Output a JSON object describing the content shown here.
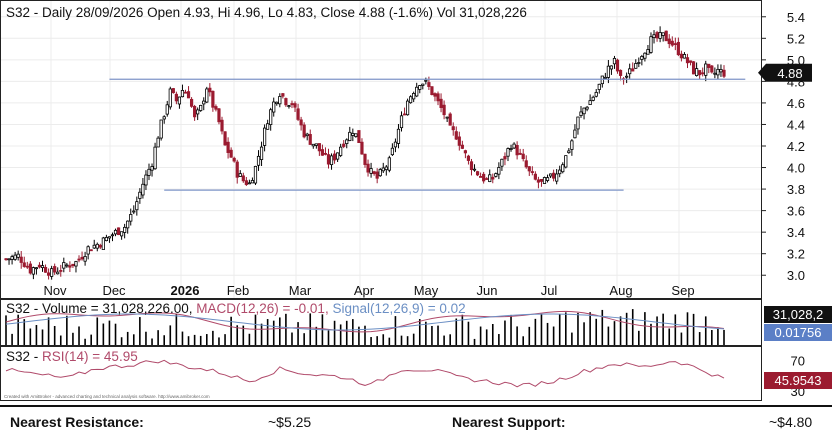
{
  "header": {
    "main_title": "S32 - Daily 28/09/2026 Open 4.93, Hi 4.96, Lo 4.83, Close 4.88 (-1.6%) Vol 31,028,226",
    "volume_title_prefix": "S32 - Volume = 31,028,226.00,",
    "macd_label": "MACD(12,26) = -0.01,",
    "signal_label": "Signal(12,26,9) = 0.02",
    "rsi_title_prefix": "S32 - ",
    "rsi_label": "RSI(14) = 45.95",
    "watermark": "Created with AmiBroker - advanced charting and technical analysis software. http://www.amibroker.com"
  },
  "badges": {
    "price": "4.88",
    "volume": "31,028,2",
    "macd": "0.01756",
    "rsi": "45.9543"
  },
  "footer": {
    "resistance_label": "Nearest Resistance:",
    "resistance_value": "~$5.25",
    "support_label": "Nearest Support:",
    "support_value": "~$4.80"
  },
  "colors": {
    "up": "#000000",
    "down": "#9b1b30",
    "level_line": "#7f95c8",
    "macd_line": "#b04a6a",
    "signal_line": "#6b8fc4",
    "rsi_line": "#b04a6a",
    "volume_bar": "#000000",
    "macd_badge_bg": "#5b7fc6",
    "rsi_badge_bg": "#9b1b30",
    "badge_dark": "#111111"
  },
  "chart_data": {
    "type": "candlestick",
    "price_axis": {
      "min": 2.9,
      "max": 5.5,
      "ticks": [
        "5.4",
        "5.2",
        "5.0",
        "4.8",
        "4.6",
        "4.4",
        "4.2",
        "4.0",
        "3.8",
        "3.6",
        "3.4",
        "3.2",
        "3.0"
      ]
    },
    "rsi_axis": {
      "ticks": [
        "70",
        "50",
        "30"
      ]
    },
    "month_labels": [
      {
        "label": "Nov",
        "bold": false
      },
      {
        "label": "Dec",
        "bold": false
      },
      {
        "label": "2026",
        "bold": true
      },
      {
        "label": "Feb",
        "bold": false
      },
      {
        "label": "Mar",
        "bold": false
      },
      {
        "label": "Apr",
        "bold": false
      },
      {
        "label": "May",
        "bold": false
      },
      {
        "label": "Jun",
        "bold": false
      },
      {
        "label": "Jul",
        "bold": false
      },
      {
        "label": "Aug",
        "bold": false
      },
      {
        "label": "Sep",
        "bold": false
      }
    ],
    "horizontal_levels": [
      {
        "value": 4.82,
        "from": 34,
        "to": 243
      },
      {
        "value": 3.79,
        "from": 52,
        "to": 203
      }
    ],
    "close_path": [
      [
        0,
        3.15
      ],
      [
        4,
        3.18
      ],
      [
        8,
        3.05
      ],
      [
        11,
        3.1
      ],
      [
        15,
        3.02
      ],
      [
        19,
        3.08
      ],
      [
        23,
        3.12
      ],
      [
        27,
        3.25
      ],
      [
        31,
        3.3
      ],
      [
        35,
        3.38
      ],
      [
        39,
        3.45
      ],
      [
        42,
        3.6
      ],
      [
        45,
        3.85
      ],
      [
        48,
        4.05
      ],
      [
        50,
        4.3
      ],
      [
        52,
        4.5
      ],
      [
        54,
        4.7
      ],
      [
        56,
        4.62
      ],
      [
        58,
        4.72
      ],
      [
        60,
        4.68
      ],
      [
        62,
        4.45
      ],
      [
        64,
        4.55
      ],
      [
        66,
        4.75
      ],
      [
        68,
        4.58
      ],
      [
        70,
        4.42
      ],
      [
        72,
        4.2
      ],
      [
        74,
        4.1
      ],
      [
        76,
        3.95
      ],
      [
        78,
        3.88
      ],
      [
        80,
        3.85
      ],
      [
        82,
        4.0
      ],
      [
        84,
        4.22
      ],
      [
        86,
        4.45
      ],
      [
        88,
        4.6
      ],
      [
        90,
        4.7
      ],
      [
        92,
        4.62
      ],
      [
        94,
        4.6
      ],
      [
        96,
        4.45
      ],
      [
        98,
        4.32
      ],
      [
        100,
        4.25
      ],
      [
        102,
        4.2
      ],
      [
        104,
        4.12
      ],
      [
        106,
        4.05
      ],
      [
        108,
        4.1
      ],
      [
        110,
        4.2
      ],
      [
        112,
        4.28
      ],
      [
        114,
        4.35
      ],
      [
        116,
        4.25
      ],
      [
        118,
        4.05
      ],
      [
        120,
        3.95
      ],
      [
        122,
        3.9
      ],
      [
        124,
        3.98
      ],
      [
        126,
        4.05
      ],
      [
        128,
        4.25
      ],
      [
        130,
        4.45
      ],
      [
        132,
        4.62
      ],
      [
        134,
        4.72
      ],
      [
        136,
        4.8
      ],
      [
        138,
        4.78
      ],
      [
        140,
        4.7
      ],
      [
        142,
        4.6
      ],
      [
        144,
        4.5
      ],
      [
        146,
        4.35
      ],
      [
        148,
        4.3
      ],
      [
        150,
        4.18
      ],
      [
        152,
        4.05
      ],
      [
        154,
        3.98
      ],
      [
        156,
        3.92
      ],
      [
        158,
        3.88
      ],
      [
        160,
        3.9
      ],
      [
        162,
        4.0
      ],
      [
        164,
        4.1
      ],
      [
        166,
        4.22
      ],
      [
        168,
        4.15
      ],
      [
        170,
        4.05
      ],
      [
        172,
        3.95
      ],
      [
        174,
        3.88
      ],
      [
        176,
        3.85
      ],
      [
        178,
        3.88
      ],
      [
        180,
        3.92
      ],
      [
        182,
        4.0
      ],
      [
        184,
        4.1
      ],
      [
        186,
        4.25
      ],
      [
        188,
        4.45
      ],
      [
        190,
        4.55
      ],
      [
        192,
        4.62
      ],
      [
        194,
        4.7
      ],
      [
        196,
        4.82
      ],
      [
        198,
        4.92
      ],
      [
        200,
        4.98
      ],
      [
        202,
        4.82
      ],
      [
        204,
        4.85
      ],
      [
        206,
        4.92
      ],
      [
        208,
        5.02
      ],
      [
        210,
        5.1
      ],
      [
        212,
        5.18
      ],
      [
        214,
        5.2
      ],
      [
        216,
        5.22
      ],
      [
        218,
        5.18
      ],
      [
        220,
        5.12
      ],
      [
        222,
        5.05
      ],
      [
        224,
        4.98
      ],
      [
        226,
        4.9
      ],
      [
        228,
        4.88
      ],
      [
        230,
        4.92
      ],
      [
        232,
        4.85
      ],
      [
        234,
        4.9
      ],
      [
        236,
        4.88
      ]
    ],
    "rsi_path": [
      [
        0,
        58
      ],
      [
        10,
        52
      ],
      [
        20,
        47
      ],
      [
        30,
        60
      ],
      [
        40,
        64
      ],
      [
        50,
        70
      ],
      [
        60,
        62
      ],
      [
        70,
        55
      ],
      [
        80,
        43
      ],
      [
        90,
        59
      ],
      [
        100,
        52
      ],
      [
        110,
        49
      ],
      [
        120,
        38
      ],
      [
        130,
        59
      ],
      [
        140,
        58
      ],
      [
        150,
        47
      ],
      [
        160,
        42
      ],
      [
        170,
        37
      ],
      [
        180,
        43
      ],
      [
        190,
        56
      ],
      [
        200,
        66
      ],
      [
        210,
        62
      ],
      [
        220,
        70
      ],
      [
        230,
        56
      ],
      [
        236,
        46
      ]
    ]
  }
}
